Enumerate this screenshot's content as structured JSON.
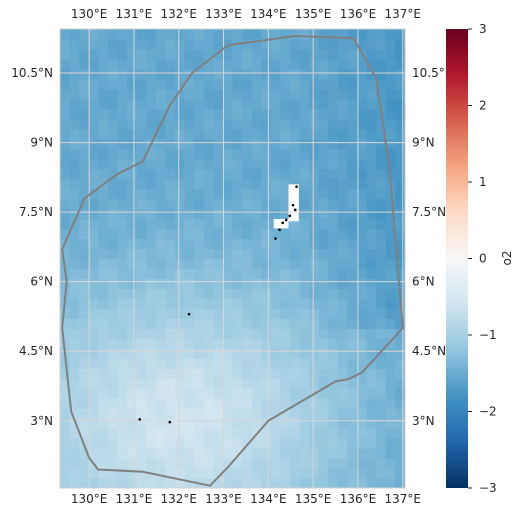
{
  "map": {
    "lon_range": [
      129.35,
      137.05
    ],
    "lat_range": [
      1.55,
      11.45
    ],
    "lon_ticks": [
      {
        "value": 130,
        "label": "130°E"
      },
      {
        "value": 131,
        "label": "131°E"
      },
      {
        "value": 132,
        "label": "132°E"
      },
      {
        "value": 133,
        "label": "133°E"
      },
      {
        "value": 134,
        "label": "134°E"
      },
      {
        "value": 135,
        "label": "135°E"
      },
      {
        "value": 136,
        "label": "136°E"
      },
      {
        "value": 137,
        "label": "137°E"
      }
    ],
    "lat_ticks": [
      {
        "value": 10.5,
        "label": "10.5°N"
      },
      {
        "value": 9,
        "label": "9°N"
      },
      {
        "value": 7.5,
        "label": "7.5°N"
      },
      {
        "value": 6,
        "label": "6°N"
      },
      {
        "value": 4.5,
        "label": "4.5°N"
      },
      {
        "value": 3,
        "label": "3°N"
      }
    ],
    "gridlines": true,
    "boundary_color": "#808080",
    "boundary": [
      [
        134.6,
        11.3
      ],
      [
        135.9,
        11.25
      ],
      [
        136.4,
        10.4
      ],
      [
        136.7,
        8.5
      ],
      [
        137.0,
        5.0
      ],
      [
        136.1,
        4.05
      ],
      [
        135.8,
        3.9
      ],
      [
        135.5,
        3.85
      ],
      [
        134.0,
        3.0
      ],
      [
        133.1,
        2.0
      ],
      [
        132.7,
        1.6
      ],
      [
        131.2,
        1.9
      ],
      [
        130.2,
        1.95
      ],
      [
        130.0,
        2.2
      ],
      [
        129.6,
        3.2
      ],
      [
        129.4,
        5.0
      ],
      [
        129.5,
        6.0
      ],
      [
        129.4,
        6.7
      ],
      [
        129.9,
        7.8
      ],
      [
        130.6,
        8.3
      ],
      [
        131.2,
        8.6
      ],
      [
        131.4,
        9.0
      ],
      [
        131.8,
        9.8
      ],
      [
        132.3,
        10.5
      ],
      [
        133.1,
        11.1
      ],
      [
        134.6,
        11.3
      ]
    ],
    "land_color": "#000000",
    "islands": [
      {
        "lon": 134.63,
        "lat": 8.05
      },
      {
        "lon": 134.55,
        "lat": 7.65
      },
      {
        "lon": 134.6,
        "lat": 7.55
      },
      {
        "lon": 134.48,
        "lat": 7.42
      },
      {
        "lon": 134.4,
        "lat": 7.33
      },
      {
        "lon": 134.32,
        "lat": 7.27
      },
      {
        "lon": 134.25,
        "lat": 7.12
      },
      {
        "lon": 134.16,
        "lat": 6.93
      },
      {
        "lon": 132.23,
        "lat": 5.3
      },
      {
        "lon": 131.13,
        "lat": 3.03
      },
      {
        "lon": 131.8,
        "lat": 2.97
      }
    ],
    "missing_cells": [
      {
        "lon": [
          134.45,
          134.68
        ],
        "lat": [
          7.3,
          8.1
        ]
      },
      {
        "lon": [
          134.12,
          134.45
        ],
        "lat": [
          7.15,
          7.35
        ]
      }
    ],
    "field": {
      "variable": "o2",
      "nx": 36,
      "ny": 46
    }
  },
  "colorbar": {
    "label": "o2",
    "vmin": -3,
    "vmax": 3,
    "colormap": "RdBu_r",
    "ticks": [
      {
        "value": 3,
        "label": "3"
      },
      {
        "value": 2,
        "label": "2"
      },
      {
        "value": 1,
        "label": "1"
      },
      {
        "value": 0,
        "label": "0"
      },
      {
        "value": -1,
        "label": "−1"
      },
      {
        "value": -2,
        "label": "−2"
      },
      {
        "value": -3,
        "label": "−3"
      }
    ]
  }
}
